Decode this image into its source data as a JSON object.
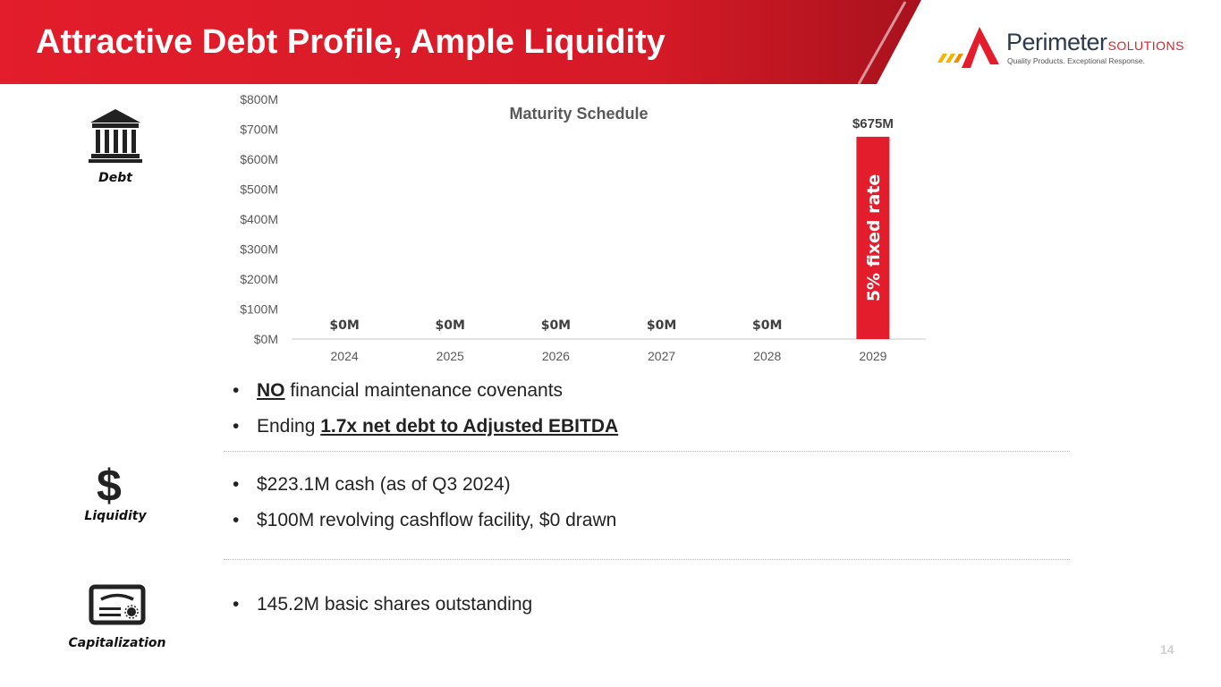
{
  "slide": {
    "title": "Attractive Debt Profile, Ample Liquidity",
    "page_number": "14"
  },
  "logo": {
    "name": "Perimeter",
    "suffix": "SOLUTIONS",
    "tagline": "Quality Products. Exceptional Response."
  },
  "colors": {
    "brand_red": "#e31d2b",
    "dark_red": "#a8121d",
    "text": "#222222",
    "axis_text": "#595959",
    "label_text": "#404040"
  },
  "categories": {
    "debt": {
      "label": "Debt",
      "icon": "bank-icon"
    },
    "liquidity": {
      "label": "Liquidity",
      "icon": "dollar-icon",
      "symbol": "$"
    },
    "capitalization": {
      "label": "Capitalization",
      "icon": "stock-certificate-icon"
    }
  },
  "debt_points": [
    {
      "pre": "",
      "emph": "NO",
      "post": " financial maintenance covenants"
    },
    {
      "pre": "Ending ",
      "emph": "1.7x net debt to Adjusted EBITDA",
      "post": ""
    }
  ],
  "liquidity_points": [
    {
      "text": "$223.1M cash (as of Q3 2024)"
    },
    {
      "text": "$100M revolving cashflow facility, $0 drawn"
    }
  ],
  "capitalization_points": [
    {
      "text": "145.2M basic shares outstanding"
    }
  ],
  "chart_data": {
    "type": "bar",
    "title": "Maturity Schedule",
    "categories": [
      "2024",
      "2025",
      "2026",
      "2027",
      "2028",
      "2029"
    ],
    "values": [
      0,
      0,
      0,
      0,
      0,
      675
    ],
    "data_labels": [
      "$0M",
      "$0M",
      "$0M",
      "$0M",
      "$0M",
      "$675M"
    ],
    "bar_annotation": {
      "category": "2029",
      "text": "5% fixed rate"
    },
    "ylim": [
      0,
      800
    ],
    "yticks": [
      0,
      100,
      200,
      300,
      400,
      500,
      600,
      700,
      800
    ],
    "ytick_labels": [
      "$0M",
      "$100M",
      "$200M",
      "$300M",
      "$400M",
      "$500M",
      "$600M",
      "$700M",
      "$800M"
    ],
    "xlabel": "",
    "ylabel": "",
    "grid": false,
    "bar_color": "#e31d2b"
  }
}
